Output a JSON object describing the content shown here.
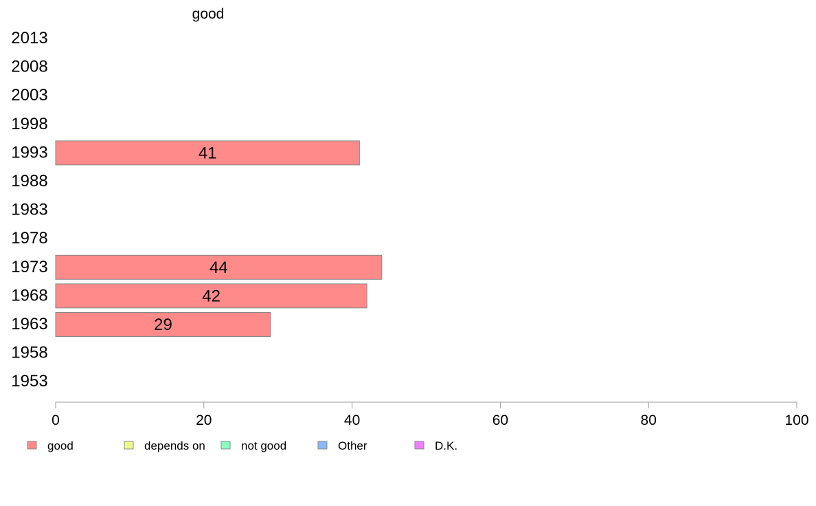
{
  "chart_data": {
    "type": "bar",
    "orientation": "horizontal",
    "title": "good",
    "categories": [
      "2013",
      "2008",
      "2003",
      "1998",
      "1993",
      "1988",
      "1983",
      "1978",
      "1973",
      "1968",
      "1963",
      "1958",
      "1953"
    ],
    "series": [
      {
        "name": "good",
        "color": "#ff8a8a",
        "values": [
          null,
          null,
          null,
          null,
          41,
          null,
          null,
          null,
          44,
          42,
          29,
          null,
          null
        ],
        "labels": [
          "",
          "",
          "",
          "",
          "41",
          "",
          "",
          "",
          "44",
          "42",
          "29",
          "",
          ""
        ]
      }
    ],
    "xlim": [
      0,
      100
    ],
    "xticks": [
      "0",
      "20",
      "40",
      "60",
      "80",
      "100"
    ],
    "xlabel": "",
    "ylabel": "",
    "grid": false,
    "legend": {
      "placement": "bottom",
      "items": [
        {
          "label": "good",
          "color": "#ff8a8a"
        },
        {
          "label": "depends on",
          "color": "#eeff8a"
        },
        {
          "label": "not good",
          "color": "#8affc0"
        },
        {
          "label": "Other",
          "color": "#8ab8ff"
        },
        {
          "label": "D.K.",
          "color": "#f080ff"
        }
      ]
    }
  }
}
